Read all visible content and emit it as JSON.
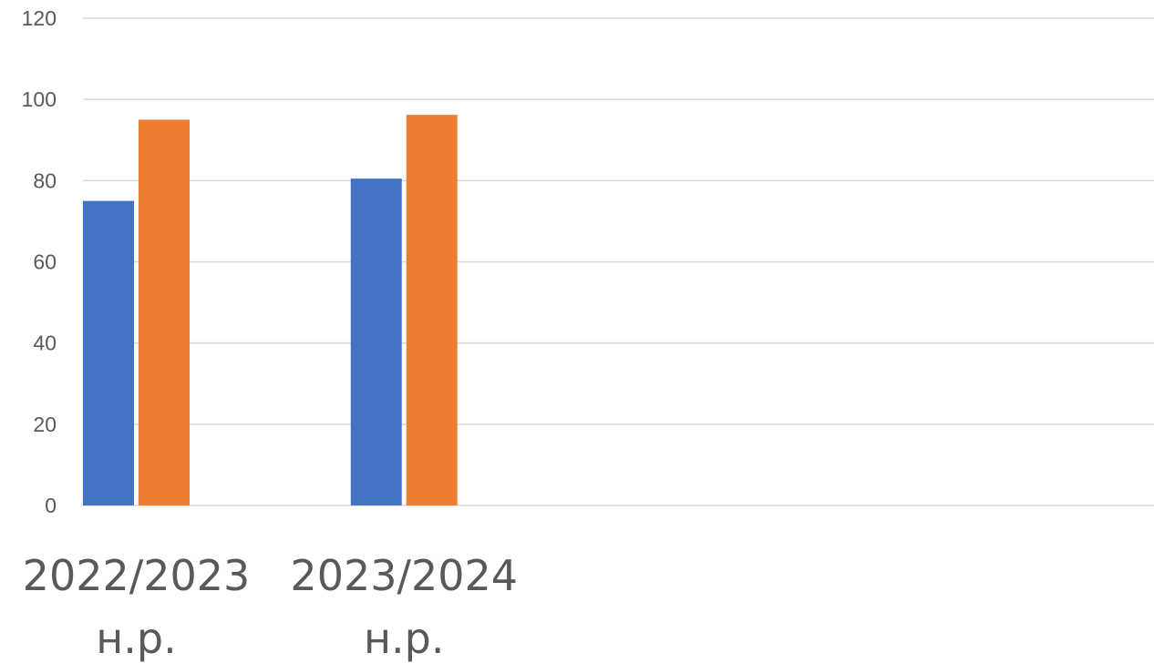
{
  "chart_data": {
    "type": "bar",
    "categories": [
      [
        "2022/2023",
        "н.р."
      ],
      [
        "2023/2024",
        "н.р."
      ]
    ],
    "series": [
      {
        "color": "#4472C4",
        "values": [
          75,
          80.5
        ]
      },
      {
        "color": "#ED7D31",
        "values": [
          95,
          96.2
        ]
      }
    ],
    "ylim": [
      0,
      120
    ],
    "yticks": [
      0,
      20,
      40,
      60,
      80,
      100,
      120
    ],
    "category_slots": 4,
    "grid": true,
    "title": "",
    "xlabel": "",
    "ylabel": ""
  }
}
